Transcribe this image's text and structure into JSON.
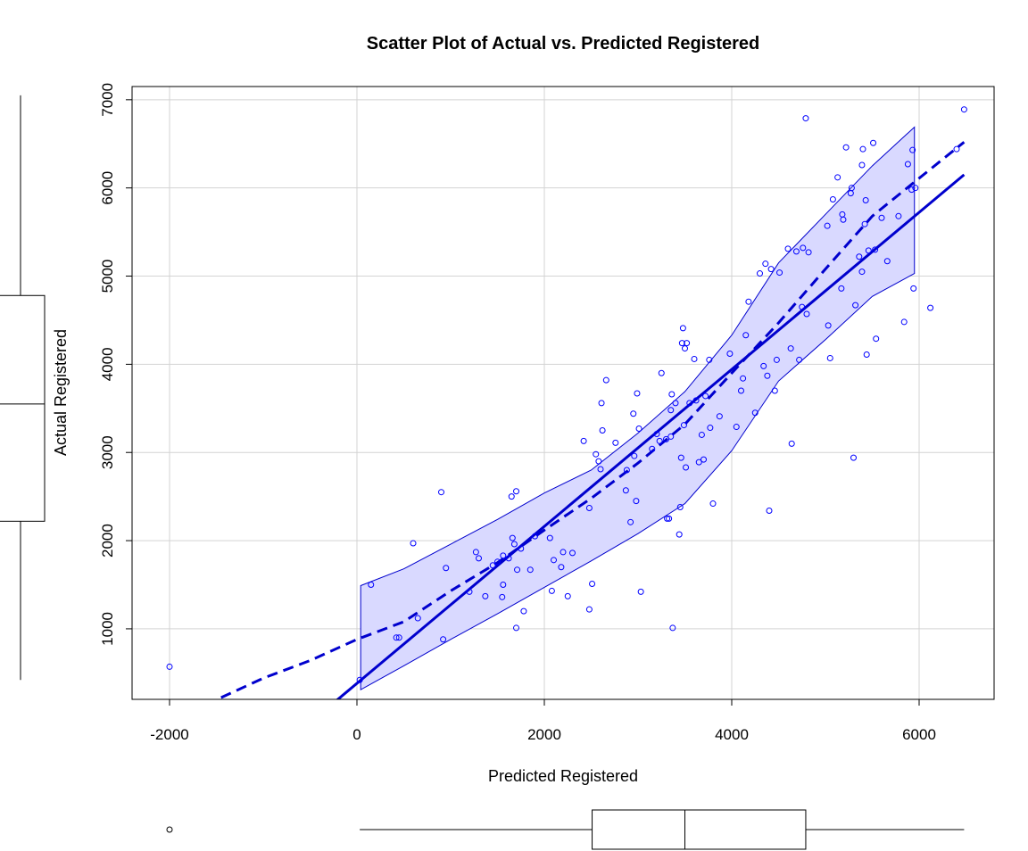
{
  "chart_data": {
    "type": "scatter",
    "title": "Scatter Plot of Actual vs. Predicted Registered",
    "xlabel": "Predicted Registered",
    "ylabel": "Actual Registered",
    "xlim": [
      -2400,
      6800
    ],
    "ylim": [
      200,
      7150
    ],
    "x_ticks": [
      -2000,
      0,
      2000,
      4000,
      6000
    ],
    "x_tick_labels": [
      "-2000",
      "0",
      "2000",
      "4000",
      "6000"
    ],
    "y_ticks": [
      1000,
      2000,
      3000,
      4000,
      5000,
      6000,
      7000
    ],
    "y_tick_labels": [
      "1000",
      "2000",
      "3000",
      "4000",
      "5000",
      "6000",
      "7000"
    ],
    "grid": true,
    "colors": {
      "points": "#0000ff",
      "fit": "#0000cd",
      "band_fill": "#d9d9ff",
      "band_stroke": "#0000cd",
      "grid": "#d3d3d3"
    },
    "points": [
      [
        -2000,
        570
      ],
      [
        30,
        420
      ],
      [
        150,
        1500
      ],
      [
        420,
        900
      ],
      [
        450,
        900
      ],
      [
        600,
        1970
      ],
      [
        650,
        1120
      ],
      [
        900,
        2550
      ],
      [
        920,
        880
      ],
      [
        950,
        1690
      ],
      [
        1200,
        1420
      ],
      [
        1270,
        1870
      ],
      [
        1300,
        1800
      ],
      [
        1370,
        1370
      ],
      [
        1450,
        1720
      ],
      [
        1500,
        1760
      ],
      [
        1550,
        1360
      ],
      [
        1560,
        1500
      ],
      [
        1560,
        1830
      ],
      [
        1620,
        1800
      ],
      [
        1650,
        2500
      ],
      [
        1660,
        2030
      ],
      [
        1680,
        1960
      ],
      [
        1700,
        1010
      ],
      [
        1700,
        2560
      ],
      [
        1710,
        1670
      ],
      [
        1750,
        1910
      ],
      [
        1780,
        1200
      ],
      [
        1850,
        1670
      ],
      [
        1900,
        2050
      ],
      [
        2060,
        2030
      ],
      [
        2080,
        1430
      ],
      [
        2100,
        1780
      ],
      [
        2180,
        1700
      ],
      [
        2200,
        1870
      ],
      [
        2250,
        1370
      ],
      [
        2300,
        1860
      ],
      [
        2420,
        3130
      ],
      [
        2480,
        1220
      ],
      [
        2480,
        2370
      ],
      [
        2510,
        1510
      ],
      [
        2550,
        2980
      ],
      [
        2580,
        2900
      ],
      [
        2600,
        2810
      ],
      [
        2610,
        3560
      ],
      [
        2620,
        3250
      ],
      [
        2660,
        3820
      ],
      [
        2760,
        3110
      ],
      [
        2870,
        2570
      ],
      [
        2880,
        2800
      ],
      [
        2920,
        2210
      ],
      [
        2950,
        3440
      ],
      [
        2960,
        2960
      ],
      [
        2980,
        2450
      ],
      [
        2990,
        3670
      ],
      [
        3010,
        3270
      ],
      [
        3030,
        1420
      ],
      [
        3150,
        3040
      ],
      [
        3200,
        3210
      ],
      [
        3230,
        3130
      ],
      [
        3250,
        3900
      ],
      [
        3300,
        3150
      ],
      [
        3310,
        2250
      ],
      [
        3330,
        2250
      ],
      [
        3350,
        3180
      ],
      [
        3350,
        3480
      ],
      [
        3360,
        3660
      ],
      [
        3370,
        1010
      ],
      [
        3400,
        3560
      ],
      [
        3440,
        2070
      ],
      [
        3450,
        2380
      ],
      [
        3460,
        2940
      ],
      [
        3470,
        4240
      ],
      [
        3480,
        4410
      ],
      [
        3490,
        3310
      ],
      [
        3500,
        4180
      ],
      [
        3510,
        2830
      ],
      [
        3520,
        4240
      ],
      [
        3550,
        3560
      ],
      [
        3600,
        4060
      ],
      [
        3620,
        3590
      ],
      [
        3650,
        2890
      ],
      [
        3680,
        3200
      ],
      [
        3700,
        2920
      ],
      [
        3720,
        3640
      ],
      [
        3760,
        4050
      ],
      [
        3770,
        3280
      ],
      [
        3800,
        2420
      ],
      [
        3870,
        3410
      ],
      [
        3980,
        4120
      ],
      [
        4050,
        3290
      ],
      [
        4100,
        3700
      ],
      [
        4120,
        3840
      ],
      [
        4150,
        4330
      ],
      [
        4180,
        4710
      ],
      [
        4250,
        3450
      ],
      [
        4300,
        5030
      ],
      [
        4340,
        3980
      ],
      [
        4360,
        5140
      ],
      [
        4380,
        3870
      ],
      [
        4400,
        2340
      ],
      [
        4420,
        5080
      ],
      [
        4460,
        3700
      ],
      [
        4480,
        4050
      ],
      [
        4510,
        5040
      ],
      [
        4600,
        5310
      ],
      [
        4630,
        4180
      ],
      [
        4640,
        3100
      ],
      [
        4690,
        5280
      ],
      [
        4720,
        4050
      ],
      [
        4750,
        4650
      ],
      [
        4760,
        5320
      ],
      [
        4790,
        6790
      ],
      [
        4800,
        4570
      ],
      [
        4820,
        5270
      ],
      [
        5020,
        5570
      ],
      [
        5030,
        4440
      ],
      [
        5050,
        4070
      ],
      [
        5080,
        5870
      ],
      [
        5130,
        6120
      ],
      [
        5170,
        4860
      ],
      [
        5180,
        5700
      ],
      [
        5190,
        5640
      ],
      [
        5220,
        6460
      ],
      [
        5270,
        5940
      ],
      [
        5280,
        6000
      ],
      [
        5300,
        2940
      ],
      [
        5320,
        4670
      ],
      [
        5360,
        5220
      ],
      [
        5390,
        6260
      ],
      [
        5390,
        5050
      ],
      [
        5400,
        6440
      ],
      [
        5420,
        5590
      ],
      [
        5430,
        5860
      ],
      [
        5440,
        4110
      ],
      [
        5460,
        5290
      ],
      [
        5510,
        6510
      ],
      [
        5530,
        5300
      ],
      [
        5540,
        4290
      ],
      [
        5600,
        5660
      ],
      [
        5660,
        5170
      ],
      [
        5780,
        5680
      ],
      [
        5840,
        4480
      ],
      [
        5880,
        6270
      ],
      [
        5920,
        5980
      ],
      [
        5930,
        6430
      ],
      [
        5940,
        4860
      ],
      [
        5960,
        6000
      ],
      [
        6120,
        4640
      ],
      [
        6400,
        6440
      ],
      [
        6480,
        6890
      ]
    ],
    "fit_line": [
      [
        -260,
        150
      ],
      [
        6480,
        6150
      ]
    ],
    "smooth_line": [
      [
        -1450,
        220
      ],
      [
        -1000,
        440
      ],
      [
        -500,
        640
      ],
      [
        0,
        880
      ],
      [
        500,
        1080
      ],
      [
        1000,
        1430
      ],
      [
        1500,
        1750
      ],
      [
        2000,
        2120
      ],
      [
        2500,
        2480
      ],
      [
        3000,
        2880
      ],
      [
        3500,
        3320
      ],
      [
        4000,
        3900
      ],
      [
        4500,
        4470
      ],
      [
        5000,
        5080
      ],
      [
        5500,
        5680
      ],
      [
        6000,
        6110
      ],
      [
        6480,
        6520
      ]
    ],
    "band_upper": [
      [
        40,
        1490
      ],
      [
        500,
        1680
      ],
      [
        1000,
        1960
      ],
      [
        1500,
        2240
      ],
      [
        2000,
        2540
      ],
      [
        2500,
        2800
      ],
      [
        3000,
        3220
      ],
      [
        3500,
        3690
      ],
      [
        4000,
        4330
      ],
      [
        4500,
        5150
      ],
      [
        5000,
        5700
      ],
      [
        5500,
        6250
      ],
      [
        5950,
        6690
      ]
    ],
    "band_lower": [
      [
        40,
        310
      ],
      [
        500,
        580
      ],
      [
        1000,
        880
      ],
      [
        1500,
        1170
      ],
      [
        2000,
        1470
      ],
      [
        2500,
        1770
      ],
      [
        3000,
        2080
      ],
      [
        3500,
        2420
      ],
      [
        4000,
        3020
      ],
      [
        4500,
        3810
      ],
      [
        5000,
        4280
      ],
      [
        5500,
        4770
      ],
      [
        5950,
        5030
      ]
    ],
    "marginal_x_box": {
      "outlier": -2000,
      "whisker_low": 30,
      "q1": 2510,
      "median": 3500,
      "q3": 4790,
      "whisker_high": 6480
    },
    "marginal_y_box": {
      "whisker_low": 420,
      "q1": 2220,
      "median": 3550,
      "q3": 4780,
      "whisker_high": 7050
    }
  }
}
